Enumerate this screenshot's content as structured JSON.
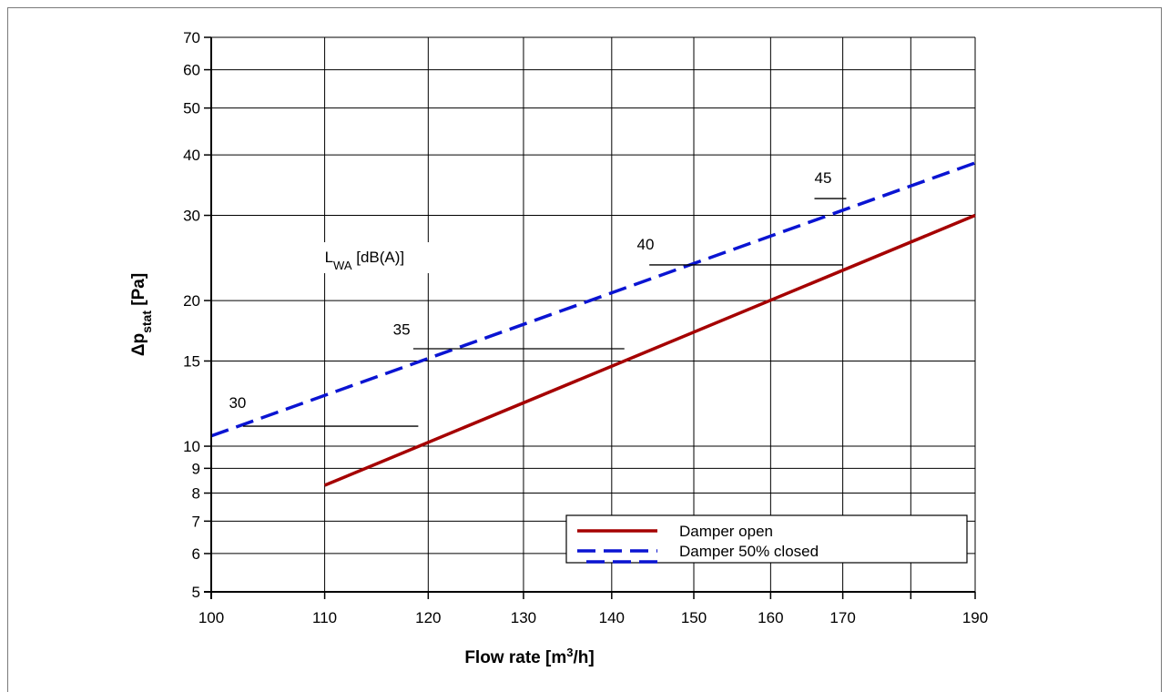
{
  "chart_data": {
    "type": "line",
    "xlabel": "Flow rate [m",
    "xlabel_sup": "3",
    "xlabel_end": "/h]",
    "ylabel": "Δp",
    "ylabel_sub": "stat",
    "ylabel_end": " [Pa]",
    "x_scale": "log",
    "y_scale": "log",
    "xlim": [
      100,
      190
    ],
    "ylim": [
      5,
      70
    ],
    "x_ticks": [
      100,
      110,
      120,
      130,
      140,
      150,
      160,
      170,
      190
    ],
    "x_gridlines": [
      100,
      110,
      120,
      130,
      140,
      150,
      160,
      170,
      180,
      190
    ],
    "y_ticks": [
      5,
      6,
      7,
      8,
      9,
      10,
      15,
      20,
      30,
      40,
      50,
      60,
      70
    ],
    "grid": true,
    "legend_position": "bottom-right",
    "series": [
      {
        "name": "Damper open",
        "color": "#a50000",
        "dash": "solid",
        "x": [
          110,
          190
        ],
        "values": [
          8.3,
          30
        ]
      },
      {
        "name": "Damper 50% closed",
        "color": "#0a14d2",
        "dash": "dashed",
        "x": [
          100,
          190
        ],
        "values": [
          10.5,
          38.5
        ]
      }
    ],
    "annotation_title": {
      "text": "L",
      "sub": "WA",
      "rest": " [dB(A)]",
      "x": 110,
      "y": 24
    },
    "sound_levels": [
      {
        "label": "30",
        "y": 11.0,
        "x_from": 102.7,
        "x_to": 119.0,
        "label_x": 101.5,
        "label_y": 12.0
      },
      {
        "label": "35",
        "y": 15.9,
        "x_from": 118.5,
        "x_to": 141.5,
        "label_x": 116.5,
        "label_y": 17.0
      },
      {
        "label": "40",
        "y": 23.7,
        "x_from": 144.5,
        "x_to": 170.0,
        "label_x": 143.0,
        "label_y": 25.5
      },
      {
        "label": "45",
        "y": 32.5,
        "x_from": 166.0,
        "x_to": 170.5,
        "label_x": 166.0,
        "label_y": 35.0
      }
    ]
  }
}
